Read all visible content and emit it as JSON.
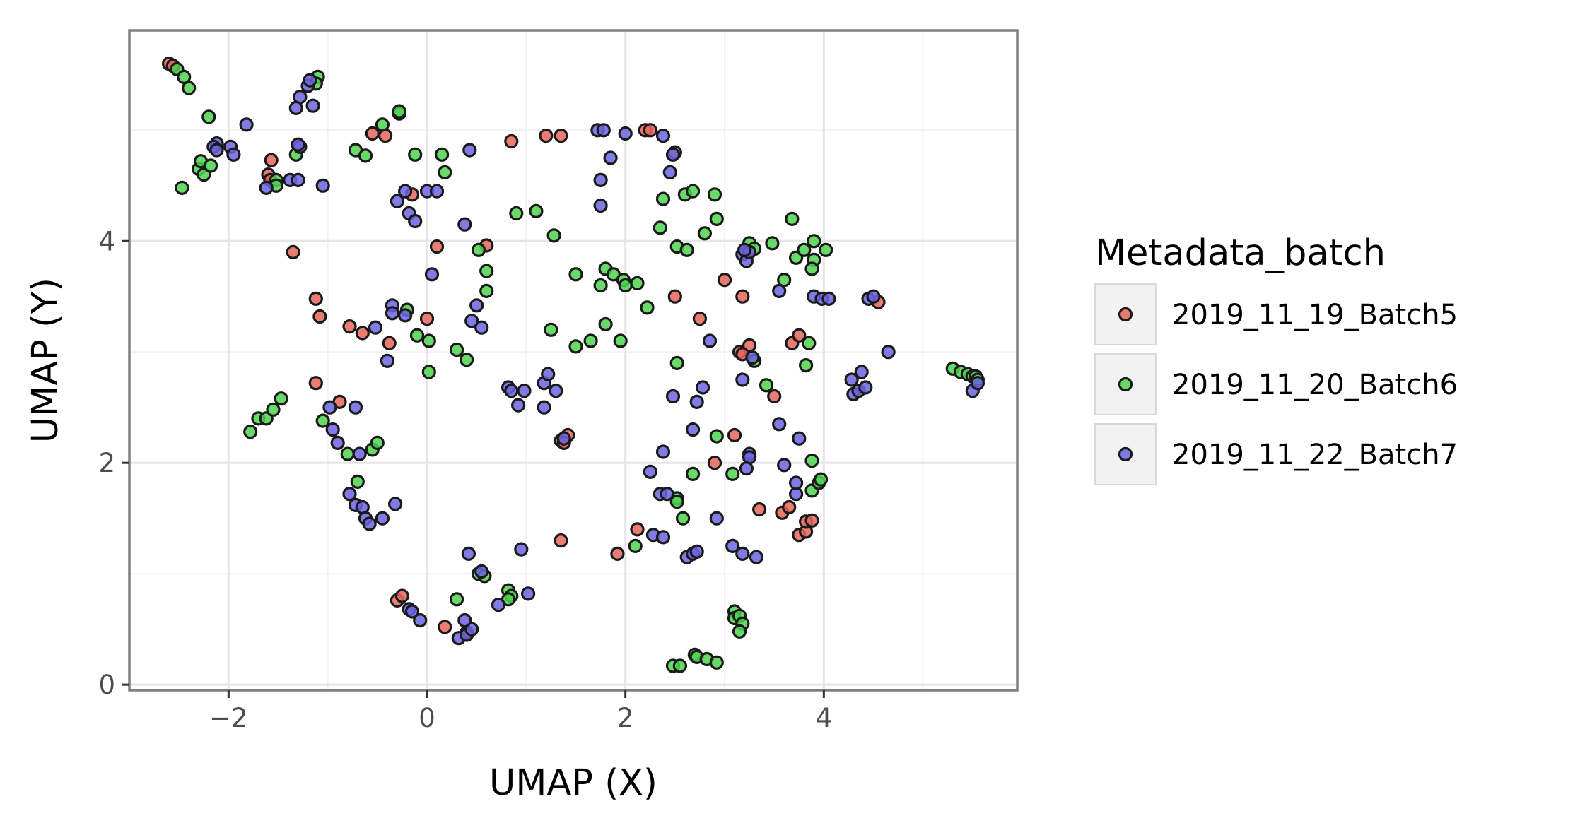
{
  "chart_data": {
    "type": "scatter",
    "title": "",
    "xlabel": "UMAP (X)",
    "ylabel": "UMAP (Y)",
    "xlim": [
      -3.0,
      5.95
    ],
    "ylim": [
      -0.05,
      5.9
    ],
    "xticks": [
      -2,
      0,
      2,
      4
    ],
    "xtick_labels": [
      "−2",
      "0",
      "2",
      "4"
    ],
    "yticks": [
      0,
      2,
      4
    ],
    "ytick_labels": [
      "0",
      "2",
      "4"
    ],
    "grid": true,
    "legend": {
      "title": "Metadata_batch",
      "position": "right"
    },
    "series": [
      {
        "name": "2019_11_19_Batch5",
        "color": "#e6655b",
        "points": [
          [
            -2.6,
            5.6
          ],
          [
            -2.56,
            5.58
          ],
          [
            -1.57,
            4.73
          ],
          [
            -1.6,
            4.6
          ],
          [
            -1.58,
            4.55
          ],
          [
            -1.35,
            3.9
          ],
          [
            -1.12,
            3.48
          ],
          [
            -1.08,
            3.32
          ],
          [
            -1.12,
            2.72
          ],
          [
            -0.78,
            3.23
          ],
          [
            -0.65,
            3.17
          ],
          [
            -0.88,
            2.55
          ],
          [
            -0.38,
            3.08
          ],
          [
            -0.55,
            4.97
          ],
          [
            -0.42,
            4.95
          ],
          [
            -0.15,
            4.42
          ],
          [
            0.0,
            3.3
          ],
          [
            0.1,
            3.95
          ],
          [
            0.6,
            3.96
          ],
          [
            0.18,
            0.52
          ],
          [
            0.4,
            0.47
          ],
          [
            -0.3,
            0.76
          ],
          [
            -0.25,
            0.8
          ],
          [
            0.85,
            4.9
          ],
          [
            1.2,
            4.95
          ],
          [
            1.35,
            4.95
          ],
          [
            1.35,
            2.2
          ],
          [
            1.42,
            2.25
          ],
          [
            1.38,
            2.18
          ],
          [
            1.35,
            1.3
          ],
          [
            2.2,
            5.0
          ],
          [
            2.25,
            5.0
          ],
          [
            2.5,
            4.8
          ],
          [
            2.5,
            3.5
          ],
          [
            2.75,
            3.3
          ],
          [
            2.9,
            2.0
          ],
          [
            3.0,
            3.65
          ],
          [
            3.15,
            3.0
          ],
          [
            3.18,
            3.5
          ],
          [
            3.25,
            3.06
          ],
          [
            3.1,
            2.25
          ],
          [
            3.35,
            1.58
          ],
          [
            3.5,
            2.6
          ],
          [
            3.58,
            1.55
          ],
          [
            3.65,
            1.6
          ],
          [
            3.68,
            3.08
          ],
          [
            3.75,
            3.15
          ],
          [
            3.75,
            1.35
          ],
          [
            3.82,
            1.38
          ],
          [
            3.82,
            1.47
          ],
          [
            3.88,
            1.48
          ],
          [
            4.55,
            3.45
          ],
          [
            1.92,
            1.18
          ],
          [
            2.12,
            1.4
          ],
          [
            3.18,
            2.98
          ]
        ]
      },
      {
        "name": "2019_11_20_Batch6",
        "color": "#4fd34f",
        "points": [
          [
            -2.52,
            5.55
          ],
          [
            -2.45,
            5.48
          ],
          [
            -2.4,
            5.38
          ],
          [
            -2.2,
            5.12
          ],
          [
            -2.3,
            4.65
          ],
          [
            -2.28,
            4.72
          ],
          [
            -2.25,
            4.6
          ],
          [
            -2.18,
            4.68
          ],
          [
            -2.47,
            4.48
          ],
          [
            -1.52,
            4.55
          ],
          [
            -1.52,
            4.5
          ],
          [
            -1.1,
            5.48
          ],
          [
            -1.12,
            5.42
          ],
          [
            -1.32,
            4.78
          ],
          [
            -0.72,
            4.82
          ],
          [
            -0.62,
            4.77
          ],
          [
            -0.45,
            5.05
          ],
          [
            -0.28,
            5.15
          ],
          [
            -0.28,
            5.17
          ],
          [
            -0.12,
            4.78
          ],
          [
            0.15,
            4.78
          ],
          [
            0.18,
            4.62
          ],
          [
            0.52,
            3.92
          ],
          [
            0.6,
            3.73
          ],
          [
            0.6,
            3.55
          ],
          [
            0.9,
            4.25
          ],
          [
            1.1,
            4.27
          ],
          [
            1.28,
            4.05
          ],
          [
            -0.2,
            3.38
          ],
          [
            -0.1,
            3.15
          ],
          [
            0.02,
            3.1
          ],
          [
            0.02,
            2.82
          ],
          [
            0.3,
            3.02
          ],
          [
            0.4,
            2.93
          ],
          [
            1.25,
            3.2
          ],
          [
            1.5,
            3.05
          ],
          [
            1.5,
            3.7
          ],
          [
            1.65,
            3.1
          ],
          [
            1.75,
            3.6
          ],
          [
            1.8,
            3.75
          ],
          [
            1.88,
            3.7
          ],
          [
            1.98,
            3.65
          ],
          [
            2.0,
            3.6
          ],
          [
            2.12,
            3.62
          ],
          [
            2.22,
            3.4
          ],
          [
            1.8,
            3.25
          ],
          [
            1.95,
            3.1
          ],
          [
            2.35,
            4.12
          ],
          [
            2.38,
            4.38
          ],
          [
            2.6,
            4.42
          ],
          [
            2.68,
            4.45
          ],
          [
            2.9,
            4.42
          ],
          [
            2.92,
            4.2
          ],
          [
            2.8,
            4.07
          ],
          [
            2.52,
            3.95
          ],
          [
            2.62,
            3.92
          ],
          [
            2.52,
            2.9
          ],
          [
            3.25,
            3.98
          ],
          [
            3.3,
            3.93
          ],
          [
            3.48,
            3.98
          ],
          [
            3.68,
            4.2
          ],
          [
            3.6,
            3.65
          ],
          [
            3.72,
            3.85
          ],
          [
            3.8,
            3.92
          ],
          [
            3.9,
            4.0
          ],
          [
            3.9,
            3.83
          ],
          [
            3.88,
            3.75
          ],
          [
            4.02,
            3.92
          ],
          [
            3.85,
            3.08
          ],
          [
            3.82,
            2.88
          ],
          [
            3.3,
            2.92
          ],
          [
            3.42,
            2.7
          ],
          [
            2.92,
            2.24
          ],
          [
            3.08,
            1.9
          ],
          [
            3.88,
            2.02
          ],
          [
            3.88,
            1.75
          ],
          [
            3.95,
            1.82
          ],
          [
            3.97,
            1.85
          ],
          [
            2.52,
            1.68
          ],
          [
            2.52,
            1.65
          ],
          [
            2.58,
            1.5
          ],
          [
            2.68,
            1.9
          ],
          [
            2.1,
            1.25
          ],
          [
            -1.78,
            2.28
          ],
          [
            -1.7,
            2.4
          ],
          [
            -1.62,
            2.4
          ],
          [
            -1.55,
            2.48
          ],
          [
            -1.47,
            2.58
          ],
          [
            -1.05,
            2.38
          ],
          [
            -0.8,
            2.08
          ],
          [
            -0.55,
            2.12
          ],
          [
            -0.5,
            2.18
          ],
          [
            -0.7,
            1.83
          ],
          [
            0.52,
            1.0
          ],
          [
            0.58,
            0.98
          ],
          [
            0.3,
            0.77
          ],
          [
            0.82,
            0.85
          ],
          [
            0.85,
            0.8
          ],
          [
            0.82,
            0.77
          ],
          [
            2.48,
            0.17
          ],
          [
            2.55,
            0.17
          ],
          [
            2.7,
            0.27
          ],
          [
            2.72,
            0.25
          ],
          [
            2.82,
            0.23
          ],
          [
            2.92,
            0.2
          ],
          [
            3.1,
            0.66
          ],
          [
            3.1,
            0.6
          ],
          [
            3.15,
            0.62
          ],
          [
            3.18,
            0.55
          ],
          [
            3.15,
            0.48
          ],
          [
            5.3,
            2.85
          ],
          [
            5.38,
            2.82
          ],
          [
            5.45,
            2.8
          ],
          [
            5.5,
            2.78
          ],
          [
            5.53,
            2.78
          ],
          [
            5.55,
            2.75
          ]
        ]
      },
      {
        "name": "2019_11_22_Batch7",
        "color": "#6b64e0",
        "points": [
          [
            -1.2,
            5.4
          ],
          [
            -1.18,
            5.45
          ],
          [
            -1.15,
            5.22
          ],
          [
            -1.28,
            5.3
          ],
          [
            -1.32,
            5.2
          ],
          [
            -1.28,
            4.85
          ],
          [
            -1.3,
            4.87
          ],
          [
            -1.82,
            5.05
          ],
          [
            -2.12,
            4.88
          ],
          [
            -2.15,
            4.85
          ],
          [
            -2.12,
            4.82
          ],
          [
            -1.98,
            4.85
          ],
          [
            -1.95,
            4.78
          ],
          [
            -1.38,
            4.55
          ],
          [
            -1.3,
            4.55
          ],
          [
            -1.62,
            4.48
          ],
          [
            -1.05,
            4.5
          ],
          [
            -0.3,
            4.36
          ],
          [
            -0.22,
            4.45
          ],
          [
            -0.18,
            4.25
          ],
          [
            -0.12,
            4.18
          ],
          [
            0.0,
            4.45
          ],
          [
            0.1,
            4.45
          ],
          [
            0.38,
            4.15
          ],
          [
            0.43,
            4.82
          ],
          [
            0.05,
            3.7
          ],
          [
            -0.35,
            3.42
          ],
          [
            -0.35,
            3.35
          ],
          [
            -0.22,
            3.33
          ],
          [
            -0.52,
            3.22
          ],
          [
            -0.4,
            2.92
          ],
          [
            0.45,
            3.28
          ],
          [
            0.5,
            3.42
          ],
          [
            0.55,
            3.22
          ],
          [
            0.82,
            2.68
          ],
          [
            0.85,
            2.65
          ],
          [
            0.92,
            2.52
          ],
          [
            0.98,
            2.65
          ],
          [
            1.18,
            2.5
          ],
          [
            1.18,
            2.72
          ],
          [
            1.22,
            2.8
          ],
          [
            1.3,
            2.65
          ],
          [
            1.38,
            2.22
          ],
          [
            1.72,
            5.0
          ],
          [
            1.78,
            5.0
          ],
          [
            2.0,
            4.97
          ],
          [
            2.38,
            4.95
          ],
          [
            2.45,
            4.62
          ],
          [
            2.48,
            4.78
          ],
          [
            1.85,
            4.75
          ],
          [
            1.75,
            4.55
          ],
          [
            1.75,
            4.32
          ],
          [
            -0.72,
            2.5
          ],
          [
            -0.98,
            2.5
          ],
          [
            -0.95,
            2.3
          ],
          [
            -0.9,
            2.18
          ],
          [
            -0.78,
            1.72
          ],
          [
            -0.72,
            1.62
          ],
          [
            -0.65,
            1.6
          ],
          [
            -0.62,
            1.5
          ],
          [
            -0.58,
            1.45
          ],
          [
            -0.45,
            1.5
          ],
          [
            -0.32,
            1.63
          ],
          [
            -0.68,
            2.08
          ],
          [
            0.42,
            1.18
          ],
          [
            0.55,
            1.02
          ],
          [
            0.95,
            1.22
          ],
          [
            0.32,
            0.42
          ],
          [
            0.4,
            0.45
          ],
          [
            0.45,
            0.5
          ],
          [
            0.38,
            0.58
          ],
          [
            -0.18,
            0.68
          ],
          [
            -0.15,
            0.66
          ],
          [
            -0.07,
            0.58
          ],
          [
            0.72,
            0.72
          ],
          [
            1.02,
            0.82
          ],
          [
            2.38,
            2.1
          ],
          [
            2.25,
            1.92
          ],
          [
            2.35,
            1.72
          ],
          [
            2.42,
            1.72
          ],
          [
            2.28,
            1.35
          ],
          [
            2.38,
            1.33
          ],
          [
            2.48,
            2.6
          ],
          [
            2.68,
            2.3
          ],
          [
            2.72,
            2.55
          ],
          [
            2.78,
            2.68
          ],
          [
            2.85,
            3.1
          ],
          [
            2.92,
            1.5
          ],
          [
            2.62,
            1.15
          ],
          [
            2.68,
            1.18
          ],
          [
            2.72,
            1.2
          ],
          [
            3.08,
            1.25
          ],
          [
            3.18,
            1.18
          ],
          [
            3.32,
            1.15
          ],
          [
            3.25,
            2.08
          ],
          [
            3.25,
            2.05
          ],
          [
            3.22,
            1.95
          ],
          [
            3.18,
            2.75
          ],
          [
            3.18,
            3.88
          ],
          [
            3.22,
            3.82
          ],
          [
            3.25,
            3.9
          ],
          [
            3.55,
            3.55
          ],
          [
            3.55,
            2.35
          ],
          [
            3.6,
            1.98
          ],
          [
            3.72,
            1.72
          ],
          [
            3.72,
            1.82
          ],
          [
            3.75,
            2.22
          ],
          [
            3.2,
            3.92
          ],
          [
            3.28,
            2.95
          ],
          [
            3.9,
            3.5
          ],
          [
            3.98,
            3.48
          ],
          [
            4.05,
            3.48
          ],
          [
            4.28,
            2.75
          ],
          [
            4.3,
            2.62
          ],
          [
            4.35,
            2.65
          ],
          [
            4.38,
            2.82
          ],
          [
            4.42,
            2.68
          ],
          [
            4.45,
            3.48
          ],
          [
            4.5,
            3.5
          ],
          [
            4.65,
            3.0
          ],
          [
            5.5,
            2.65
          ],
          [
            5.55,
            2.72
          ]
        ]
      }
    ]
  }
}
